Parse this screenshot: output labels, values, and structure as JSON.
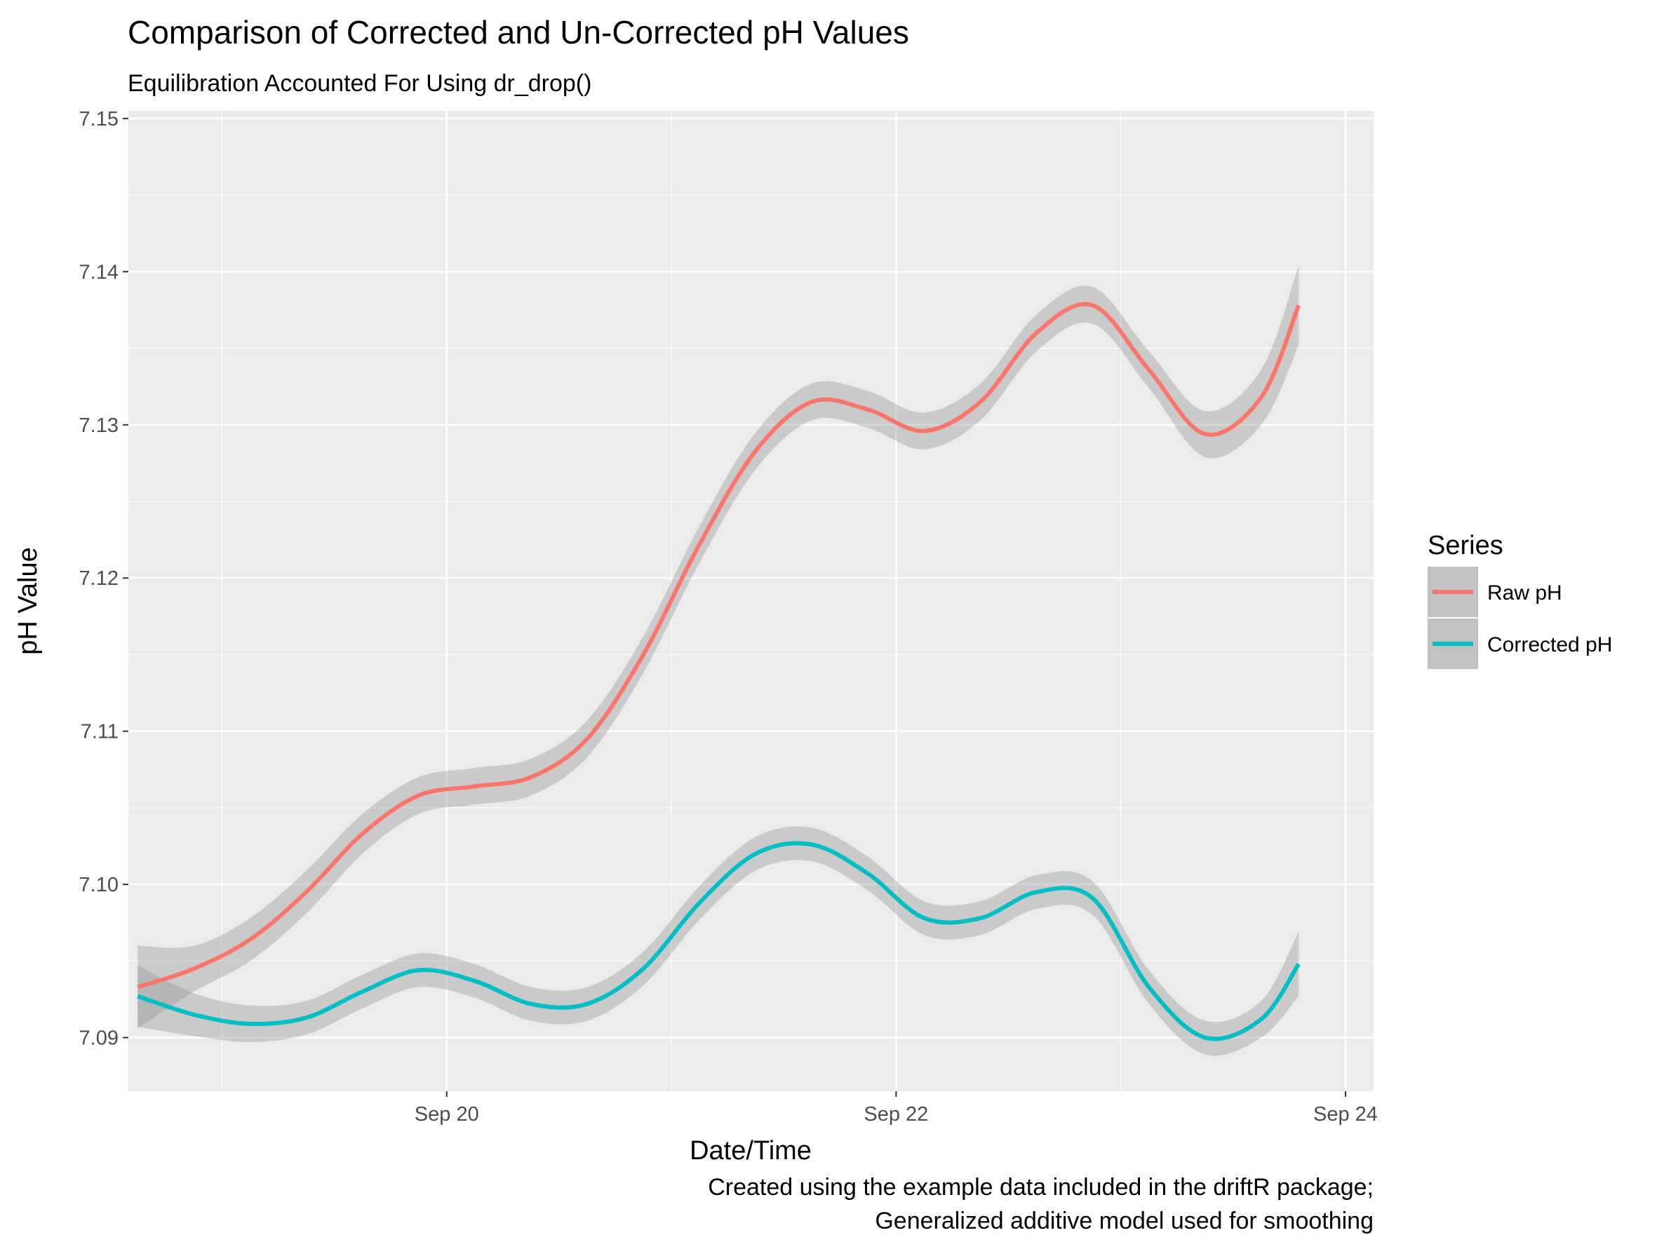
{
  "chart_data": {
    "type": "line",
    "title": "Comparison of Corrected and Un-Corrected pH Values",
    "subtitle": "Equilibration Accounted For Using dr_drop()",
    "xlabel": "Date/Time",
    "ylabel": "pH Value",
    "caption_lines": [
      "Created using the example data included in the driftR package;",
      "Generalized additive model used for smoothing"
    ],
    "x_ticks": [
      "Sep 20",
      "Sep 22",
      "Sep 24"
    ],
    "y_ticks": [
      "7.09",
      "7.10",
      "7.11",
      "7.12",
      "7.13",
      "7.14",
      "7.15"
    ],
    "xlim": [
      "2015-09-18 14:00",
      "2015-09-24 03:00"
    ],
    "ylim": [
      7.0865,
      7.1505
    ],
    "grid": true,
    "legend": {
      "title": "Series",
      "position": "right"
    },
    "x": [
      "2015-09-18 15:00",
      "2015-09-18 21:00",
      "2015-09-19 03:00",
      "2015-09-19 09:00",
      "2015-09-19 15:00",
      "2015-09-19 21:00",
      "2015-09-20 03:00",
      "2015-09-20 09:00",
      "2015-09-20 15:00",
      "2015-09-20 21:00",
      "2015-09-21 03:00",
      "2015-09-21 09:00",
      "2015-09-21 15:00",
      "2015-09-21 21:00",
      "2015-09-22 03:00",
      "2015-09-22 09:00",
      "2015-09-22 15:00",
      "2015-09-22 21:00",
      "2015-09-23 03:00",
      "2015-09-23 09:00",
      "2015-09-23 15:00",
      "2015-09-23 19:00"
    ],
    "series": [
      {
        "name": "Raw pH",
        "color": "#F8766D",
        "values": [
          7.0933,
          7.0945,
          7.0964,
          7.0995,
          7.1033,
          7.1058,
          7.1064,
          7.107,
          7.1095,
          7.115,
          7.1222,
          7.1283,
          7.1315,
          7.131,
          7.1296,
          7.1315,
          7.136,
          7.1378,
          7.1336,
          7.1294,
          7.1318,
          7.1378
        ],
        "band_halfwidth": [
          0.0027,
          0.0015,
          0.0014,
          0.0014,
          0.0013,
          0.0012,
          0.0012,
          0.0012,
          0.0012,
          0.0012,
          0.0012,
          0.0012,
          0.0012,
          0.0012,
          0.0012,
          0.0012,
          0.0012,
          0.0012,
          0.0012,
          0.0015,
          0.0018,
          0.0026
        ]
      },
      {
        "name": "Corrected pH",
        "color": "#00BFC4",
        "values": [
          7.0927,
          7.0915,
          7.0909,
          7.0913,
          7.093,
          7.0944,
          7.0937,
          7.0922,
          7.0922,
          7.0945,
          7.0988,
          7.102,
          7.1026,
          7.1007,
          7.0978,
          7.0978,
          7.0995,
          7.0991,
          7.0933,
          7.09,
          7.0912,
          7.0948
        ],
        "band_halfwidth": [
          0.002,
          0.0014,
          0.0012,
          0.0011,
          0.0011,
          0.0011,
          0.0011,
          0.0011,
          0.0011,
          0.0011,
          0.0011,
          0.0011,
          0.0011,
          0.0011,
          0.0011,
          0.0011,
          0.0011,
          0.0011,
          0.0011,
          0.0011,
          0.0012,
          0.0021
        ]
      }
    ]
  }
}
